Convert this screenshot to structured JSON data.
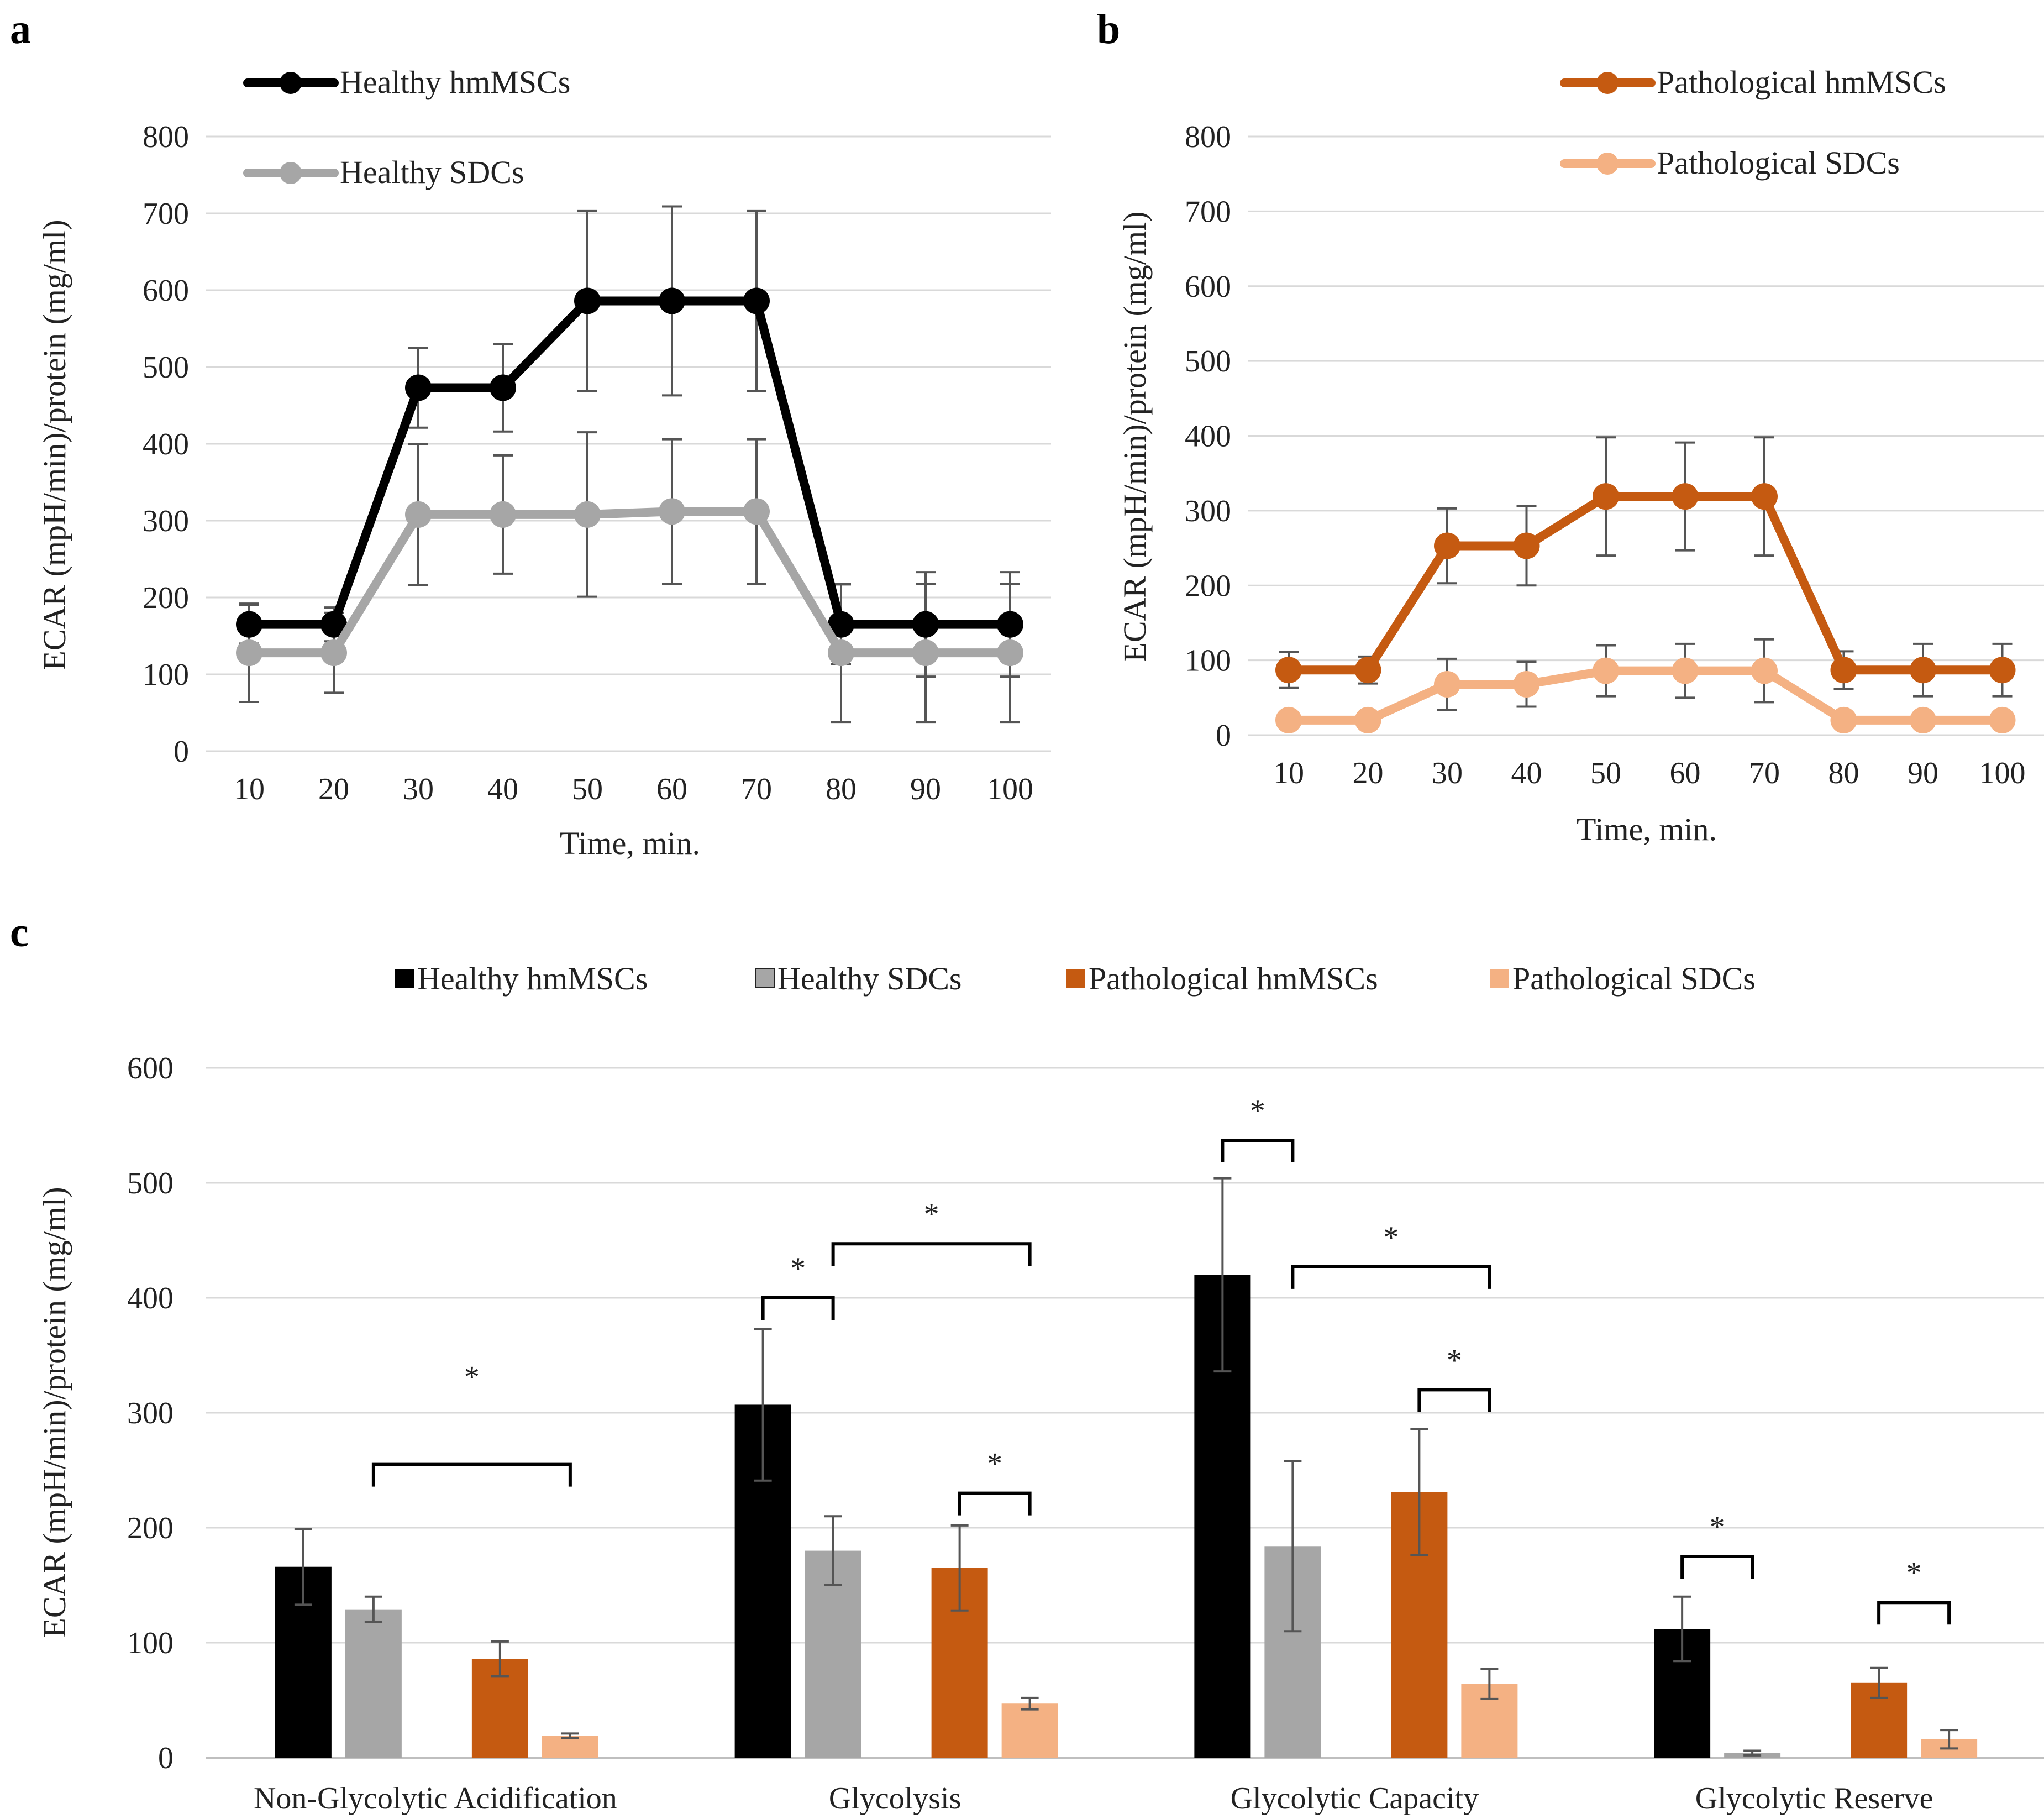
{
  "panels": [
    {
      "letter": "a",
      "chart_data": {
        "type": "line",
        "xlabel": "Time, min.",
        "ylabel": "ECAR (mpH/min)/protein (mg/ml)",
        "x": [
          10,
          20,
          30,
          40,
          50,
          60,
          70,
          80,
          90,
          100
        ],
        "ylim": [
          0,
          800
        ],
        "yticks": [
          0,
          100,
          200,
          300,
          400,
          500,
          600,
          700,
          800
        ],
        "grid": true,
        "legend_position": "top-left",
        "series": [
          {
            "name": "Healthy hmMSCs",
            "color": "#000000",
            "values": [
              165,
              165,
              473,
              473,
              586,
              586,
              586,
              165,
              165,
              165
            ],
            "errors": [
              25,
              22,
              52,
              57,
              117,
              123,
              117,
              52,
              68,
              68
            ]
          },
          {
            "name": "Healthy SDCs",
            "color": "#a6a6a6",
            "values": [
              128,
              128,
              308,
              308,
              308,
              312,
              312,
              128,
              128,
              128
            ],
            "errors": [
              64,
              52,
              92,
              77,
              107,
              94,
              94,
              90,
              90,
              90
            ]
          }
        ]
      }
    },
    {
      "letter": "b",
      "chart_data": {
        "type": "line",
        "xlabel": "Time, min.",
        "ylabel": "ECAR (mpH/min)/protein (mg/ml)",
        "x": [
          10,
          20,
          30,
          40,
          50,
          60,
          70,
          80,
          90,
          100
        ],
        "ylim": [
          0,
          800
        ],
        "yticks": [
          0,
          100,
          200,
          300,
          400,
          500,
          600,
          700,
          800
        ],
        "grid": true,
        "legend_position": "top-right",
        "series": [
          {
            "name": "Pathological hmMSCs",
            "color": "#c55a11",
            "values": [
              87,
              87,
              253,
              253,
              319,
              319,
              319,
              87,
              87,
              87
            ],
            "errors": [
              24,
              18,
              50,
              53,
              79,
              72,
              79,
              25,
              35,
              35
            ]
          },
          {
            "name": "Pathological SDCs",
            "color": "#f4b183",
            "values": [
              20,
              20,
              68,
              68,
              86,
              86,
              86,
              20,
              20,
              20
            ],
            "errors": [
              0,
              0,
              34,
              30,
              34,
              36,
              42,
              0,
              0,
              0
            ]
          }
        ]
      }
    },
    {
      "letter": "c",
      "chart_data": {
        "type": "bar",
        "ylabel": "ECAR (mpH/min)/protein (mg/ml)",
        "xlabel": "",
        "categories": [
          "Non-Glycolytic Acidification",
          "Glycolysis",
          "Glycolytic Capacity",
          "Glycolytic Reserve"
        ],
        "ylim": [
          0,
          600
        ],
        "yticks": [
          0,
          100,
          200,
          300,
          400,
          500,
          600
        ],
        "grid": true,
        "legend_position": "top",
        "series": [
          {
            "name": "Healthy hmMSCs",
            "color": "#000000",
            "values": [
              166,
              307,
              420,
              112
            ],
            "errors": [
              33,
              66,
              84,
              28
            ]
          },
          {
            "name": "Healthy SDCs",
            "color": "#a6a6a6",
            "values": [
              129,
              180,
              184,
              4
            ],
            "errors": [
              11,
              30,
              74,
              2
            ]
          },
          {
            "name": "Pathological hmMSCs",
            "color": "#c55a11",
            "values": [
              86,
              165,
              231,
              65
            ],
            "errors": [
              15,
              37,
              55,
              13
            ]
          },
          {
            "name": "Pathological SDCs",
            "color": "#f4b183",
            "values": [
              19,
              47,
              64,
              16
            ],
            "errors": [
              2,
              5,
              13,
              8
            ]
          }
        ],
        "significance": [
          {
            "label": "*",
            "category": 0,
            "from_series": 1,
            "to_series": 3,
            "y": 255
          },
          {
            "label": "*",
            "category": 1,
            "from_series": 0,
            "to_series": 1,
            "y": 400
          },
          {
            "label": "*",
            "category": 1,
            "from_series": 1,
            "to_series": 3,
            "y": 447
          },
          {
            "label": "*",
            "category": 1,
            "from_series": 2,
            "to_series": 3,
            "y": 230
          },
          {
            "label": "*",
            "category": 2,
            "from_series": 0,
            "to_series": 1,
            "y": 537
          },
          {
            "label": "*",
            "category": 2,
            "from_series": 1,
            "to_series": 3,
            "y": 427
          },
          {
            "label": "*",
            "category": 2,
            "from_series": 2,
            "to_series": 3,
            "y": 320
          },
          {
            "label": "*",
            "category": 3,
            "from_series": 0,
            "to_series": 1,
            "y": 175
          },
          {
            "label": "*",
            "category": 3,
            "from_series": 2,
            "to_series": 3,
            "y": 135
          }
        ]
      }
    }
  ]
}
